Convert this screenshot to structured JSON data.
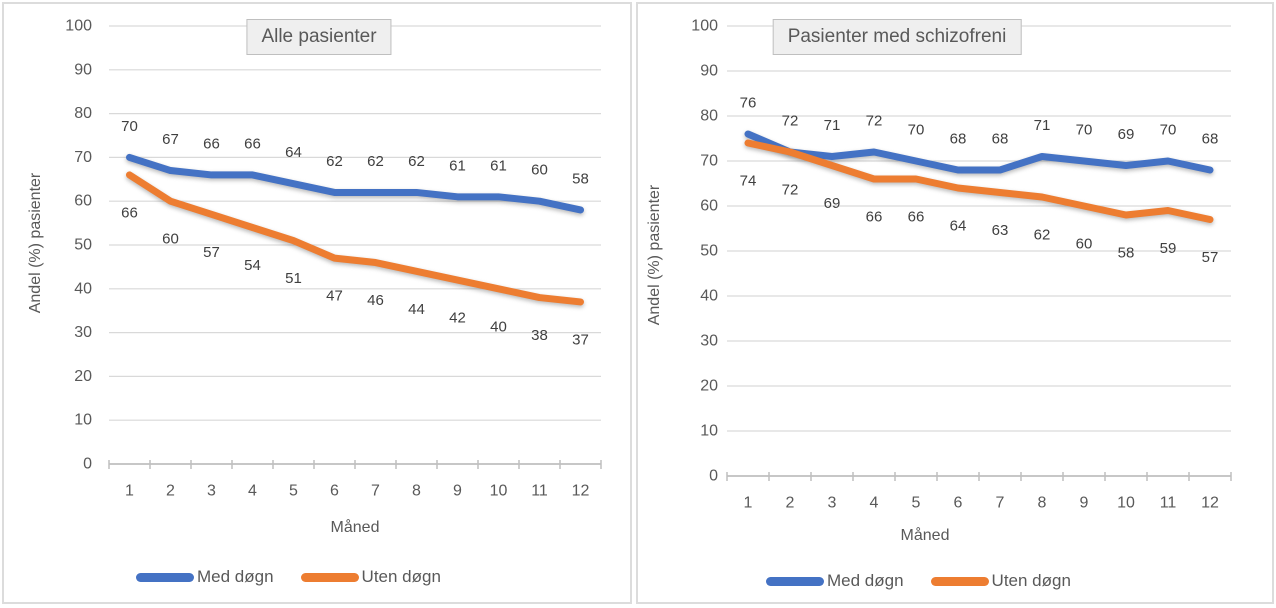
{
  "colors": {
    "series_med_dogn": "#4472C4",
    "series_uten_dogn": "#ED7D31",
    "gridline": "#D9D9D9",
    "axis_line": "#BFBFBF",
    "tick_text": "#595959",
    "title_text": "#595959",
    "data_label_text": "#404040",
    "title_box_bg": "#EFEFEF",
    "title_box_border": "#BFBFBF"
  },
  "chart_data": [
    {
      "type": "line",
      "title": "Alle pasienter",
      "xlabel": "Måned",
      "ylabel": "Andel (%) pasienter",
      "categories": [
        1,
        2,
        3,
        4,
        5,
        6,
        7,
        8,
        9,
        10,
        11,
        12
      ],
      "ylim": [
        0,
        100
      ],
      "ytick_interval": 10,
      "grid": true,
      "data_labels": true,
      "legend_position": "bottom",
      "series": [
        {
          "name": "Med døgn",
          "color": "#4472C4",
          "label_position": "above",
          "values": [
            70,
            67,
            66,
            66,
            64,
            62,
            62,
            62,
            61,
            61,
            60,
            58
          ]
        },
        {
          "name": "Uten døgn",
          "color": "#ED7D31",
          "label_position": "below",
          "values": [
            66,
            60,
            57,
            54,
            51,
            47,
            46,
            44,
            42,
            40,
            38,
            37
          ]
        }
      ]
    },
    {
      "type": "line",
      "title": "Pasienter med schizofreni",
      "xlabel": "Måned",
      "ylabel": "Andel (%) pasienter",
      "categories": [
        1,
        2,
        3,
        4,
        5,
        6,
        7,
        8,
        9,
        10,
        11,
        12
      ],
      "ylim": [
        0,
        100
      ],
      "ytick_interval": 10,
      "grid": true,
      "data_labels": true,
      "legend_position": "bottom",
      "series": [
        {
          "name": "Med døgn",
          "color": "#4472C4",
          "label_position": "above",
          "values": [
            76,
            72,
            71,
            72,
            70,
            68,
            68,
            71,
            70,
            69,
            70,
            68
          ]
        },
        {
          "name": "Uten døgn",
          "color": "#ED7D31",
          "label_position": "below",
          "values": [
            74,
            72,
            69,
            66,
            66,
            64,
            63,
            62,
            60,
            58,
            59,
            57
          ]
        }
      ]
    }
  ]
}
